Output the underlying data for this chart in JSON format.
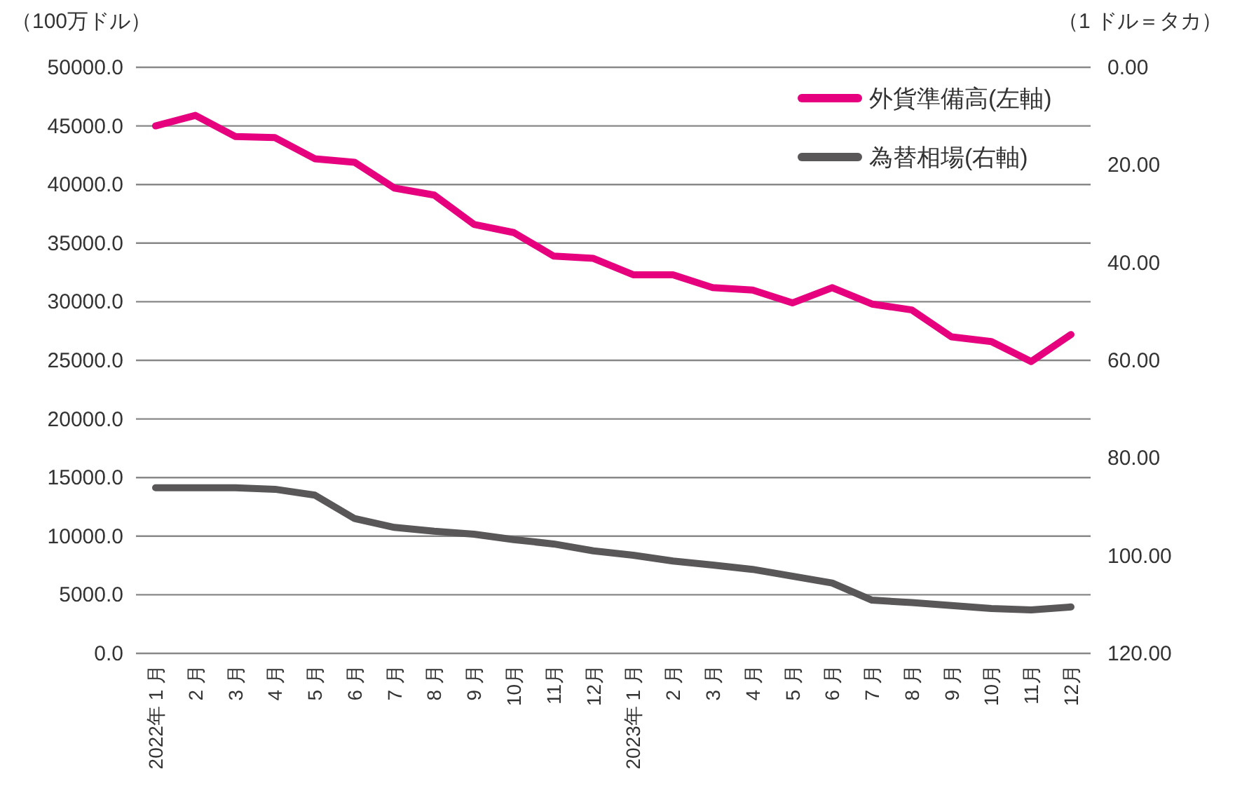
{
  "chart_data": {
    "type": "line",
    "ylabel": "（100万ドル）",
    "y2label": "（1 ドル＝タカ）",
    "categories": [
      "2022年 1 月",
      "2 月",
      "3 月",
      "4 月",
      "5 月",
      "6 月",
      "7 月",
      "8 月",
      "9 月",
      "10月",
      "11月",
      "12月",
      "2023年 1 月",
      "2 月",
      "3 月",
      "4 月",
      "5 月",
      "6 月",
      "7 月",
      "8 月",
      "9 月",
      "10月",
      "11月",
      "12月"
    ],
    "series": [
      {
        "name": "外貨準備高(左軸)",
        "color": "#e6007e",
        "values": [
          45000,
          45900,
          44100,
          44000,
          42200,
          41900,
          39700,
          39100,
          36600,
          35900,
          33900,
          33700,
          32300,
          32300,
          31200,
          31000,
          29900,
          31200,
          29800,
          29300,
          27000,
          26600,
          24900,
          27200
        ]
      },
      {
        "name": "為替相場(右軸)",
        "color": "#595757",
        "axis": "y2",
        "values": [
          86.1,
          86.1,
          86.1,
          86.4,
          87.6,
          92.4,
          94.2,
          95.0,
          95.6,
          96.7,
          97.6,
          99.0,
          99.9,
          101.1,
          101.9,
          102.8,
          104.2,
          105.6,
          109.1,
          109.6,
          110.2,
          110.8,
          111.1,
          110.5
        ]
      }
    ],
    "ylim": [
      0,
      50000
    ],
    "yticks": [
      {
        "value": 0,
        "label": "0.0"
      },
      {
        "value": 5000,
        "label": "5000.0"
      },
      {
        "value": 10000,
        "label": "10000.0"
      },
      {
        "value": 15000,
        "label": "15000.0"
      },
      {
        "value": 20000,
        "label": "20000.0"
      },
      {
        "value": 25000,
        "label": "25000.0"
      },
      {
        "value": 30000,
        "label": "30000.0"
      },
      {
        "value": 35000,
        "label": "35000.0"
      },
      {
        "value": 40000,
        "label": "40000.0"
      },
      {
        "value": 45000,
        "label": "45000.0"
      },
      {
        "value": 50000,
        "label": "50000.0"
      }
    ],
    "y2lim": [
      120,
      0
    ],
    "y2ticks": [
      {
        "value": 0,
        "label": "0.00"
      },
      {
        "value": 20,
        "label": "20.00"
      },
      {
        "value": 40,
        "label": "40.00"
      },
      {
        "value": 60,
        "label": "60.00"
      },
      {
        "value": 80,
        "label": "80.00"
      },
      {
        "value": 100,
        "label": "100.00"
      },
      {
        "value": 120,
        "label": "120.00"
      }
    ],
    "grid": "y",
    "legend": "top right",
    "marker": "none",
    "line_style": "solid"
  }
}
